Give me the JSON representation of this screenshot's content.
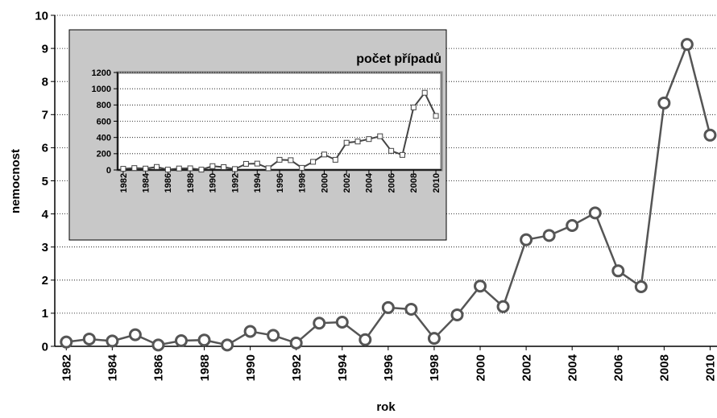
{
  "chart_data": [
    {
      "type": "line",
      "ylabel": "nemocnost",
      "xlabel": "rok",
      "x": [
        1982,
        1983,
        1984,
        1985,
        1986,
        1987,
        1988,
        1989,
        1990,
        1991,
        1992,
        1993,
        1994,
        1995,
        1996,
        1997,
        1998,
        1999,
        2000,
        2001,
        2002,
        2003,
        2004,
        2005,
        2006,
        2007,
        2008,
        2009,
        2010
      ],
      "values": [
        0.13,
        0.22,
        0.16,
        0.35,
        0.04,
        0.17,
        0.19,
        0.04,
        0.45,
        0.33,
        0.1,
        0.7,
        0.73,
        0.2,
        1.17,
        1.12,
        0.24,
        0.95,
        1.82,
        1.2,
        3.22,
        3.35,
        3.65,
        4.03,
        2.28,
        1.8,
        7.35,
        9.12,
        6.38
      ],
      "color": "#555555",
      "marker": "circle",
      "xlim": [
        1981.5,
        2010.3
      ],
      "xticks": [
        1982,
        1984,
        1986,
        1988,
        1990,
        1992,
        1994,
        1996,
        1998,
        2000,
        2002,
        2004,
        2006,
        2008,
        2010
      ],
      "ylim": [
        0,
        10
      ],
      "yticks": [
        0,
        1,
        2,
        3,
        4,
        5,
        6,
        7,
        8,
        9,
        10
      ],
      "grid": true
    },
    {
      "type": "line",
      "title": "počet případů",
      "x": [
        1982,
        1983,
        1984,
        1985,
        1986,
        1987,
        1988,
        1989,
        1990,
        1991,
        1992,
        1993,
        1994,
        1995,
        1996,
        1997,
        1998,
        1999,
        2000,
        2001,
        2002,
        2003,
        2004,
        2005,
        2006,
        2007,
        2008,
        2009,
        2010
      ],
      "values": [
        14,
        23,
        17,
        37,
        4,
        18,
        20,
        4,
        47,
        35,
        11,
        75,
        78,
        21,
        125,
        120,
        26,
        100,
        190,
        125,
        335,
        350,
        380,
        415,
        235,
        185,
        770,
        950,
        665
      ],
      "color": "#444444",
      "marker": "square",
      "xlim": [
        1981.5,
        2010.5
      ],
      "xticks": [
        1982,
        1984,
        1986,
        1988,
        1990,
        1992,
        1994,
        1996,
        1998,
        2000,
        2002,
        2004,
        2006,
        2008,
        2010
      ],
      "ylim": [
        0,
        1200
      ],
      "yticks": [
        0,
        200,
        400,
        600,
        800,
        1000,
        1200
      ],
      "grid": true
    }
  ]
}
